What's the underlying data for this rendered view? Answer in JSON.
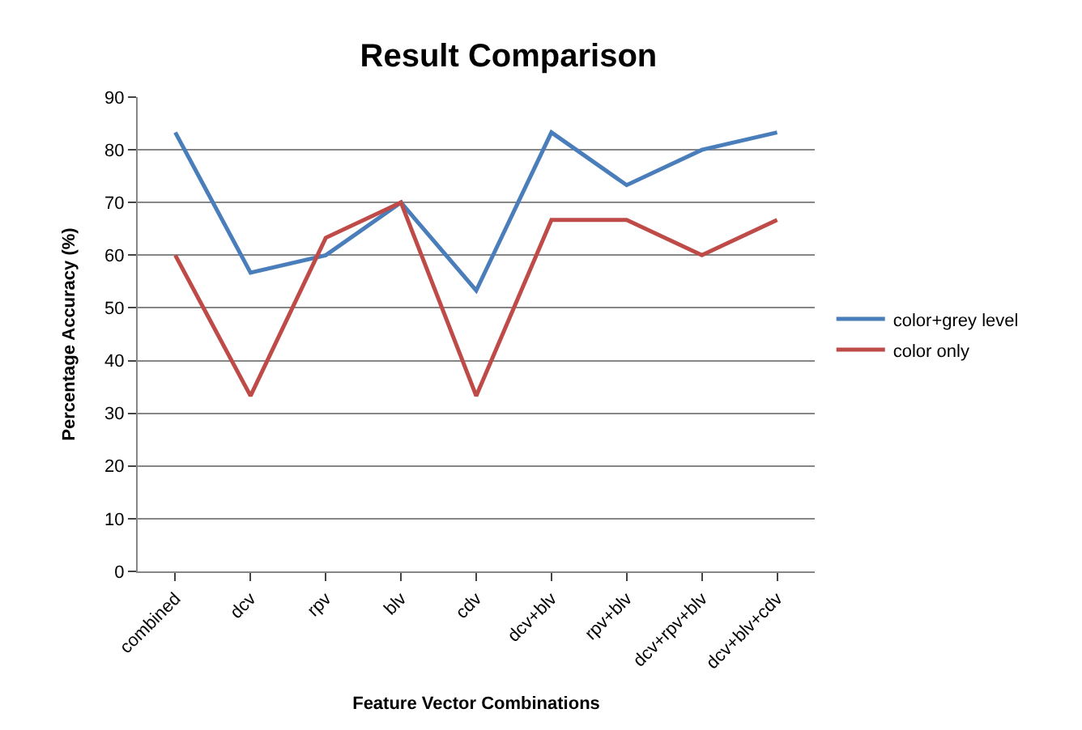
{
  "chart_data": {
    "type": "line",
    "title": "Result Comparison",
    "xlabel": "Feature Vector Combinations",
    "ylabel": "Percentage Accuracy (%)",
    "categories": [
      "combined",
      "dcv",
      "rpv",
      "blv",
      "cdv",
      "dcv+blv",
      "rpv+blv",
      "dcv+rpv+blv",
      "dcv+blv+cdv"
    ],
    "series": [
      {
        "name": "color+grey level",
        "color": "#4a7ebb",
        "values": [
          83.3,
          56.7,
          60,
          70,
          53.3,
          83.3,
          73.3,
          80,
          83.3
        ]
      },
      {
        "name": "color only",
        "color": "#be4b48",
        "values": [
          60,
          33.3,
          63.3,
          70,
          33.3,
          66.7,
          66.7,
          60,
          66.7
        ]
      }
    ],
    "ylim": [
      0,
      90
    ],
    "yticks": [
      0,
      10,
      20,
      30,
      40,
      50,
      60,
      70,
      80,
      90
    ],
    "grid": "y",
    "legend": "right",
    "marker": "none",
    "line_style": "solid"
  }
}
